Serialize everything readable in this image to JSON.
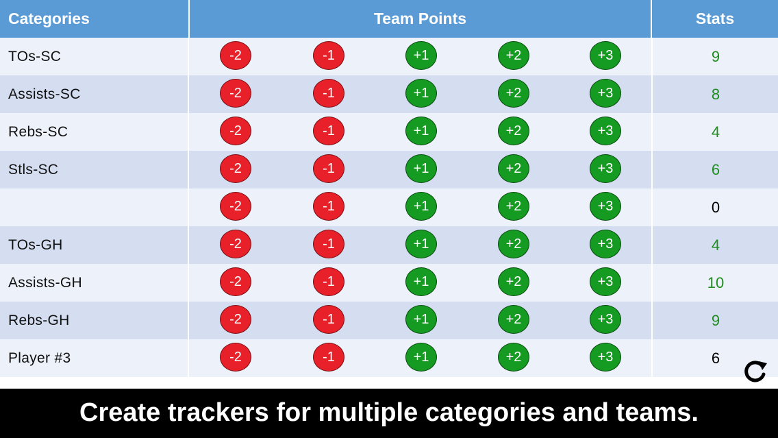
{
  "header": {
    "categories": "Categories",
    "team_points": "Team Points",
    "stats": "Stats"
  },
  "buttons": [
    "-2",
    "-1",
    "+1",
    "+2",
    "+3"
  ],
  "rows": [
    {
      "label": "TOs-SC",
      "stat": "9",
      "stat_color": "#1e8c1e"
    },
    {
      "label": "Assists-SC",
      "stat": "8",
      "stat_color": "#1e8c1e"
    },
    {
      "label": "Rebs-SC",
      "stat": "4",
      "stat_color": "#1e8c1e"
    },
    {
      "label": "Stls-SC",
      "stat": "6",
      "stat_color": "#1e8c1e"
    },
    {
      "label": "",
      "stat": "0",
      "stat_color": "#000000"
    },
    {
      "label": "TOs-GH",
      "stat": "4",
      "stat_color": "#1e8c1e"
    },
    {
      "label": "Assists-GH",
      "stat": "10",
      "stat_color": "#1e8c1e"
    },
    {
      "label": "Rebs-GH",
      "stat": "9",
      "stat_color": "#1e8c1e"
    },
    {
      "label": "Player #3",
      "stat": "6",
      "stat_color": "#000000"
    }
  ],
  "colors": {
    "header_bg": "#5b9bd5",
    "negative_button": "#e8202a",
    "positive_button": "#159a22"
  },
  "icons": {
    "refresh": "refresh-icon"
  },
  "caption": "Create trackers for multiple categories and teams."
}
